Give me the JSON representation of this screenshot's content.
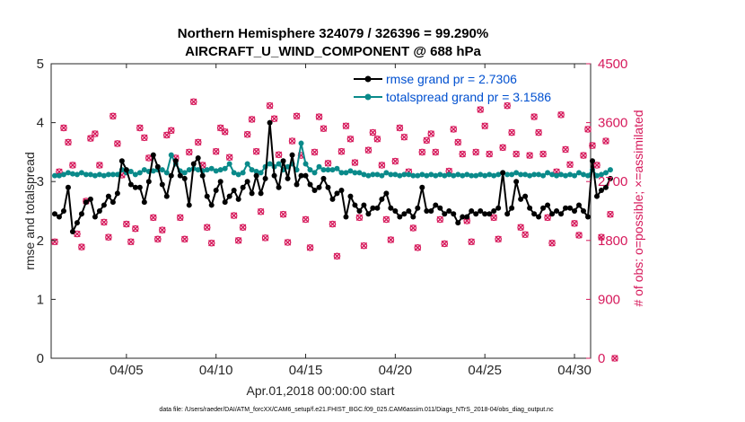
{
  "chart_data": {
    "type": "line",
    "title": "Northern Hemisphere 324079 / 326396 = 99.290%",
    "subtitle": "AIRCRAFT_U_WIND_COMPONENT @ 688 hPa",
    "xlabel": "Apr.01,2018 00:00:00 start",
    "ylabel_left": "rmse and totalspread",
    "ylabel_right": "# of obs: o=possible; ×=assimilated",
    "footnote": "data file: /Users/raeder/DAI/ATM_forcXX/CAM6_setup/f.e21.FHIST_BGC.f09_025.CAM6assim.011/Diags_NTrS_2018-04/obs_diag_output.nc",
    "xlim": [
      0.8,
      30.9
    ],
    "ylim_left": [
      0,
      5
    ],
    "ylim_right": [
      0,
      4500
    ],
    "x_ticks": [
      {
        "value": 5,
        "label": "04/05"
      },
      {
        "value": 10,
        "label": "04/10"
      },
      {
        "value": 15,
        "label": "04/15"
      },
      {
        "value": 20,
        "label": "04/20"
      },
      {
        "value": 25,
        "label": "04/25"
      },
      {
        "value": 30,
        "label": "04/30"
      }
    ],
    "y_ticks_left": [
      "0",
      "1",
      "2",
      "3",
      "4",
      "5"
    ],
    "y_ticks_right": [
      "0",
      "900",
      "1800",
      "2700",
      "3600",
      "4500"
    ],
    "colors": {
      "rmse": "#000000",
      "spread": "#0a8a8a",
      "obs": "#d6195b",
      "legend_text": "#0050d0"
    },
    "series": [
      {
        "name": "rmse grand pr = 2.7306",
        "axis": "left",
        "x0": 1,
        "dx": 0.25,
        "values": [
          2.45,
          2.4,
          2.5,
          2.9,
          2.15,
          2.3,
          2.45,
          2.65,
          2.7,
          2.4,
          2.5,
          2.6,
          2.75,
          2.65,
          2.8,
          3.35,
          3.2,
          2.95,
          2.9,
          2.9,
          2.65,
          3.0,
          3.45,
          3.25,
          2.95,
          2.75,
          3.1,
          3.35,
          3.1,
          3.05,
          2.6,
          3.3,
          3.4,
          3.1,
          2.75,
          2.6,
          2.85,
          3.0,
          2.65,
          2.75,
          2.85,
          2.7,
          2.9,
          3.0,
          2.8,
          3.1,
          2.8,
          3.05,
          4.0,
          3.1,
          2.9,
          3.35,
          3.05,
          3.45,
          2.95,
          3.1,
          3.1,
          2.95,
          2.85,
          2.9,
          3.05,
          2.9,
          2.7,
          2.8,
          2.85,
          2.4,
          2.75,
          2.6,
          2.5,
          2.6,
          2.45,
          2.55,
          2.55,
          2.7,
          2.8,
          2.55,
          2.5,
          2.4,
          2.45,
          2.5,
          2.4,
          2.55,
          2.9,
          2.5,
          2.5,
          2.6,
          2.55,
          2.45,
          2.5,
          2.45,
          2.3,
          2.4,
          2.4,
          2.5,
          2.45,
          2.5,
          2.45,
          2.45,
          2.5,
          2.55,
          3.15,
          2.45,
          2.55,
          3.0,
          2.7,
          2.75,
          2.55,
          2.45,
          2.4,
          2.55,
          2.6,
          2.45,
          2.5,
          2.45,
          2.55,
          2.55,
          2.5,
          2.6,
          2.5,
          2.4,
          3.35,
          2.75,
          2.85,
          2.9,
          3.05
        ]
      },
      {
        "name": "totalspread grand pr = 3.1586",
        "axis": "left",
        "x0": 1,
        "dx": 0.25,
        "values": [
          3.1,
          3.1,
          3.12,
          3.15,
          3.13,
          3.12,
          3.15,
          3.12,
          3.12,
          3.1,
          3.12,
          3.1,
          3.12,
          3.12,
          3.12,
          3.2,
          3.15,
          3.17,
          3.12,
          3.15,
          3.2,
          3.17,
          3.18,
          3.2,
          3.2,
          3.15,
          3.45,
          3.3,
          3.18,
          3.15,
          3.2,
          3.22,
          3.2,
          3.18,
          3.2,
          3.22,
          3.18,
          3.2,
          3.22,
          3.3,
          3.15,
          3.12,
          3.15,
          3.3,
          3.2,
          3.17,
          3.15,
          3.25,
          3.3,
          3.25,
          3.3,
          3.2,
          3.25,
          3.3,
          3.2,
          3.65,
          3.3,
          3.2,
          3.15,
          3.25,
          3.2,
          3.2,
          3.2,
          3.22,
          3.15,
          3.15,
          3.18,
          3.15,
          3.15,
          3.12,
          3.1,
          3.12,
          3.12,
          3.1,
          3.15,
          3.12,
          3.12,
          3.1,
          3.12,
          3.12,
          3.1,
          3.1,
          3.12,
          3.1,
          3.12,
          3.1,
          3.12,
          3.1,
          3.12,
          3.1,
          3.12,
          3.1,
          3.12,
          3.1,
          3.1,
          3.12,
          3.1,
          3.12,
          3.1,
          3.12,
          3.15,
          3.12,
          3.12,
          3.15,
          3.12,
          3.12,
          3.1,
          3.12,
          3.12,
          3.1,
          3.15,
          3.12,
          3.1,
          3.12,
          3.1,
          3.12,
          3.1,
          3.15,
          3.12,
          3.1,
          3.2,
          3.1,
          3.12,
          3.15,
          3.2
        ]
      },
      {
        "name": "obs possible/assimilated",
        "axis": "right",
        "x0": 1,
        "dx": 0.25,
        "values": [
          1780,
          2850,
          3520,
          3300,
          2950,
          1900,
          1700,
          2400,
          3360,
          3430,
          2950,
          2080,
          1850,
          3700,
          3280,
          2800,
          2050,
          1780,
          1980,
          3520,
          3370,
          3060,
          2150,
          1820,
          1960,
          3410,
          3480,
          3060,
          2150,
          1820,
          3150,
          3920,
          3300,
          2950,
          2000,
          1760,
          3160,
          3520,
          3460,
          3070,
          2180,
          1800,
          2000,
          3420,
          3650,
          3160,
          2240,
          1840,
          3860,
          3660,
          3110,
          2200,
          1770,
          3320,
          3700,
          3100,
          2120,
          1690,
          3150,
          3690,
          3510,
          2980,
          2050,
          1560,
          3160,
          3550,
          3350,
          2990,
          2150,
          1720,
          3180,
          3450,
          3350,
          2950,
          2120,
          1810,
          3010,
          3520,
          3380,
          2850,
          1990,
          1690,
          3150,
          3330,
          3430,
          3150,
          2120,
          1750,
          2860,
          3500,
          3300,
          3120,
          2100,
          1780,
          3150,
          3800,
          3550,
          3120,
          2150,
          1820,
          3220,
          3860,
          3450,
          3120,
          2000,
          1890,
          3100,
          3690,
          3450,
          3120,
          2150,
          1760,
          2850,
          3720,
          3190,
          2960,
          2060,
          1880,
          3100,
          3500,
          3250,
          2950,
          1850,
          3320,
          2200,
          0
        ]
      }
    ]
  }
}
